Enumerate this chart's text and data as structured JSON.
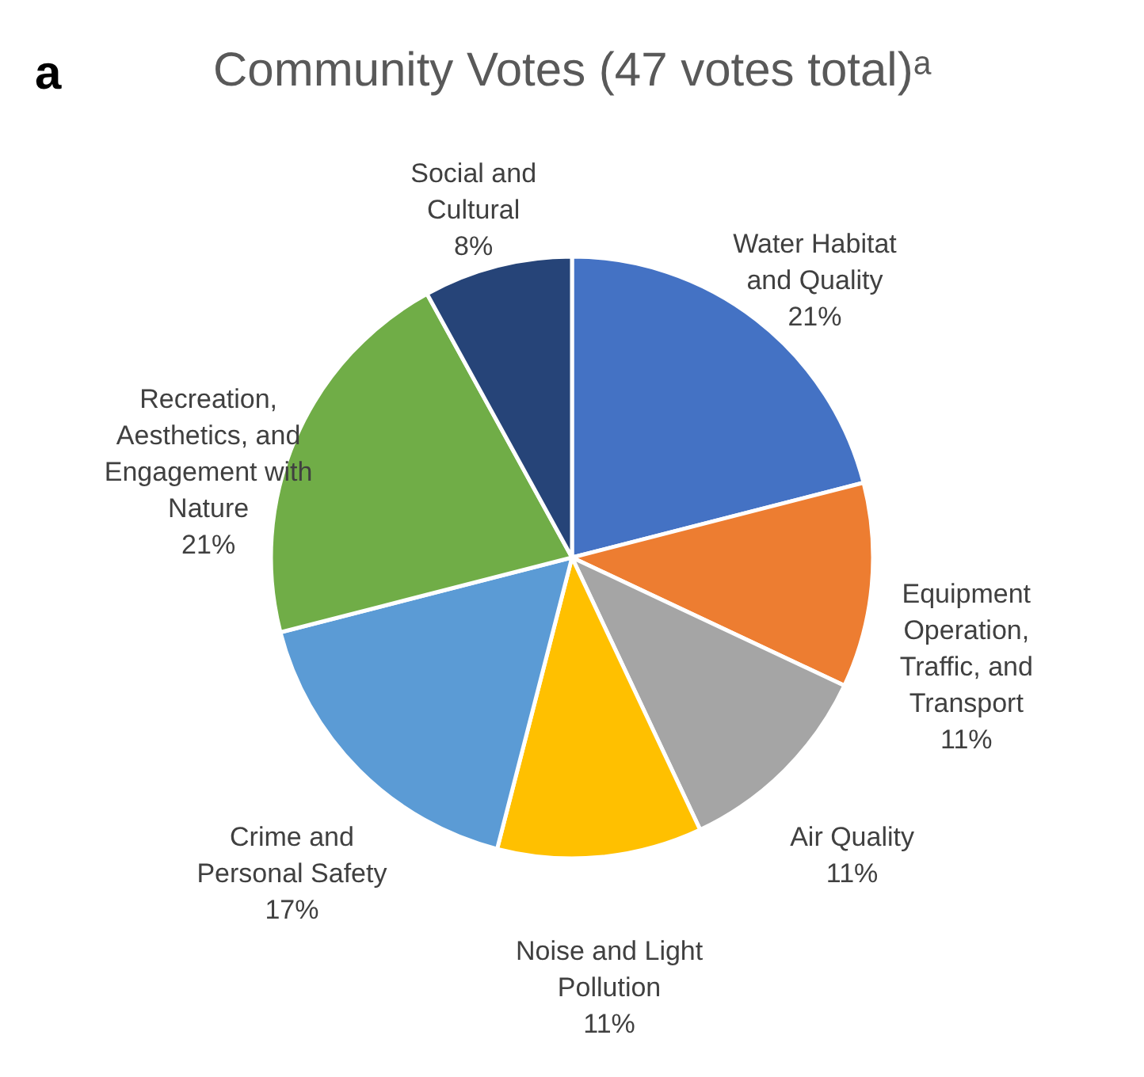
{
  "chart_data": {
    "type": "pie",
    "title": "Community Votes (47 votes total)ᵃ",
    "categories": [
      "Water Habitat and Quality",
      "Equipment Operation, Traffic, and Transport",
      "Air Quality",
      "Noise and Light Pollution",
      "Crime and Personal Safety",
      "Recreation, Aesthetics, and Engagement with Nature",
      "Social and Cultural"
    ],
    "values": [
      21,
      11,
      11,
      11,
      17,
      21,
      8
    ],
    "value_labels": [
      "21%",
      "11%",
      "11%",
      "11%",
      "17%",
      "21%",
      "8%"
    ],
    "colors": [
      "#4472c4",
      "#ed7d31",
      "#a5a5a5",
      "#ffc000",
      "#5b9bd5",
      "#70ad47",
      "#264478"
    ],
    "annotations": [
      "a"
    ],
    "legend": false
  }
}
